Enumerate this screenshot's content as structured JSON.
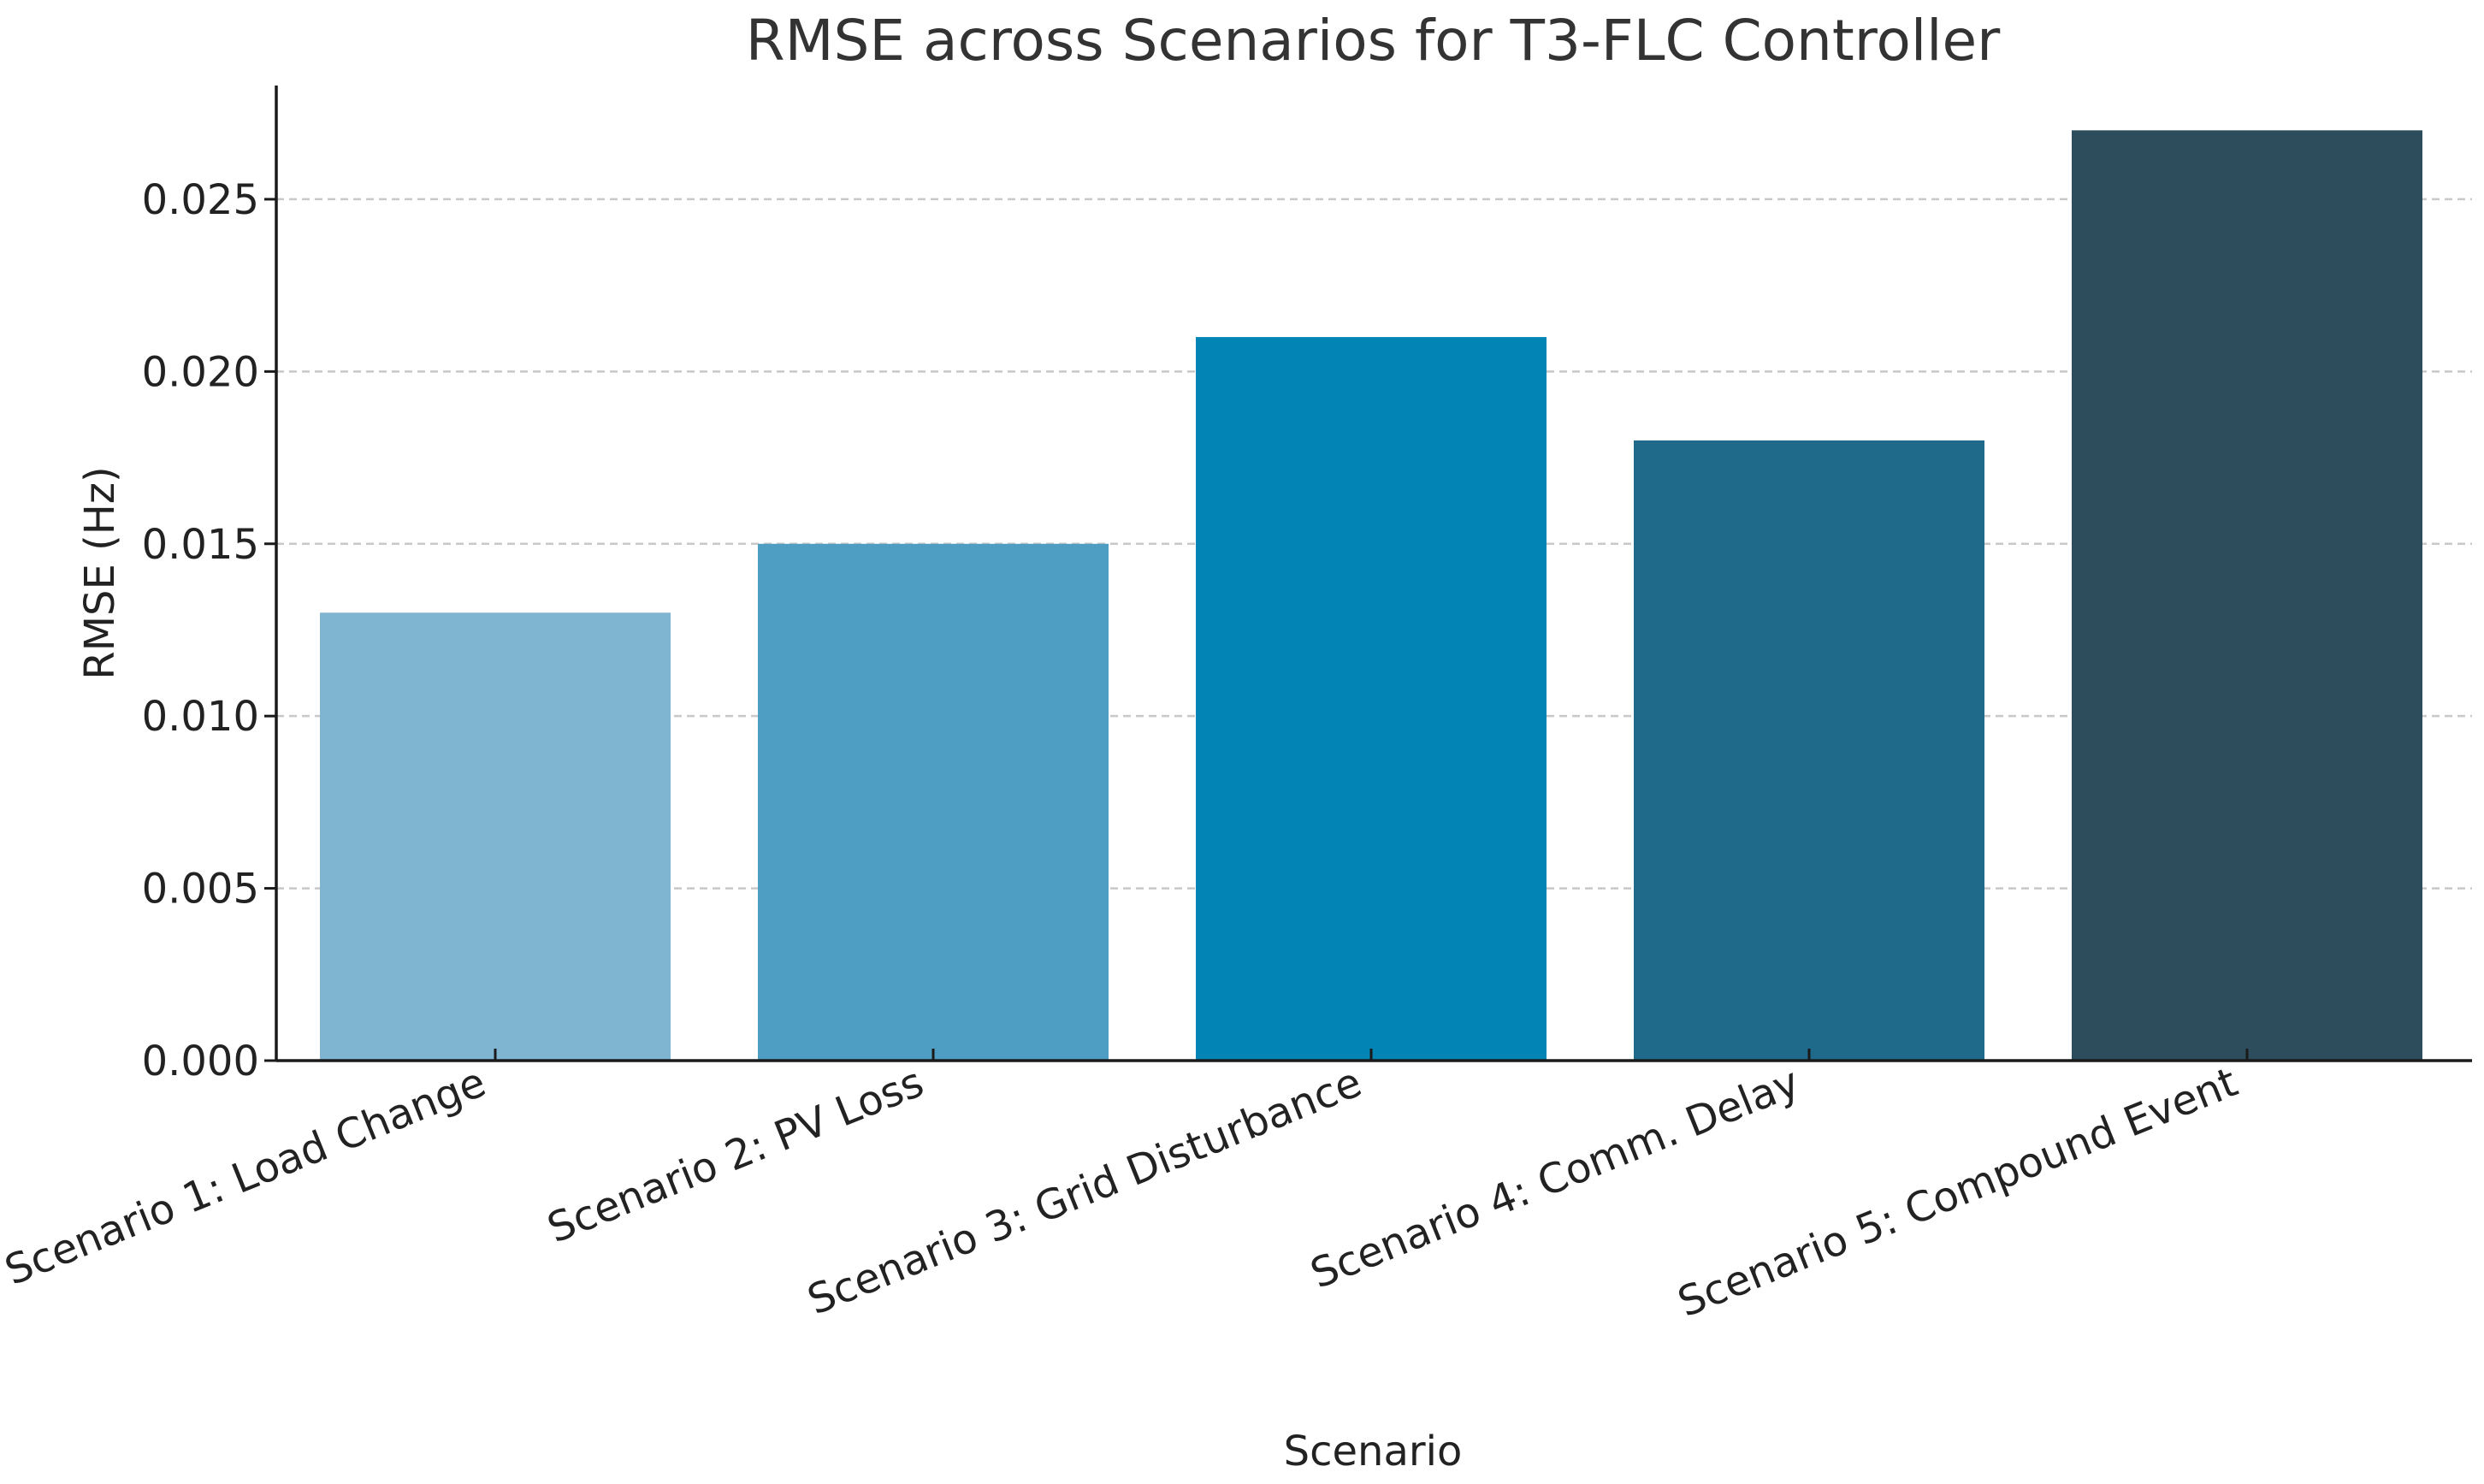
{
  "chart_data": {
    "type": "bar",
    "title": "RMSE across Scenarios for T3-FLC Controller",
    "xlabel": "Scenario",
    "ylabel": "RMSE (Hz)",
    "categories": [
      "Scenario 1: Load Change",
      "Scenario 2: PV Loss",
      "Scenario 3: Grid Disturbance",
      "Scenario 4: Comm. Delay",
      "Scenario 5: Compound Event"
    ],
    "values": [
      0.013,
      0.015,
      0.021,
      0.018,
      0.027
    ],
    "colors": [
      "#7fb5d1",
      "#4e9ec3",
      "#0284b4",
      "#1f6a8b",
      "#2d4d5d"
    ],
    "ylim": [
      0,
      0.0283
    ],
    "yticks": [
      0.0,
      0.005,
      0.01,
      0.015,
      0.02,
      0.025
    ],
    "ytick_labels": [
      "0.000",
      "0.005",
      "0.010",
      "0.015",
      "0.020",
      "0.025"
    ],
    "grid": true,
    "grid_axis": "y",
    "legend": false
  }
}
